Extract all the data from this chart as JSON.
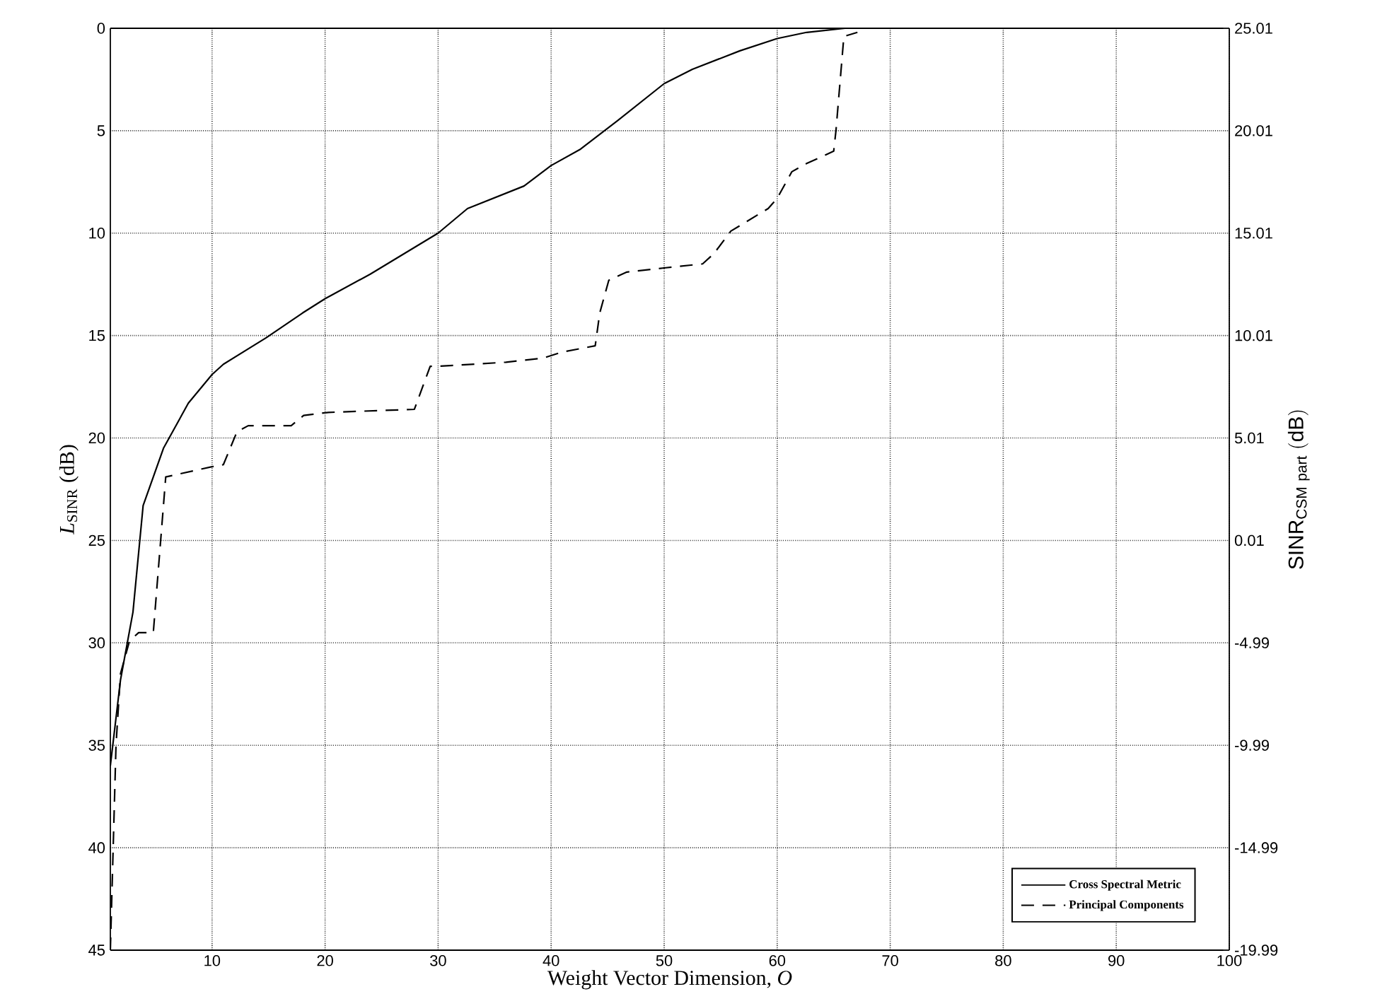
{
  "chart_data": {
    "type": "line",
    "xlabel": "Weight Vector Dimension, *O*",
    "ylabel": "*L*$_{SINR}$ (dB)",
    "y2label": "\\mathrm{SINR}_{\\mathrm{CSM\\ part}}\\ \\mathrm{(dB)}",
    "xlim": [
      1,
      100
    ],
    "xticks": [
      10,
      20,
      30,
      40,
      50,
      60,
      70,
      80,
      90,
      100
    ],
    "ylim": [
      45,
      0
    ],
    "yticks": [
      0,
      5,
      10,
      15,
      20,
      25,
      30,
      35,
      40,
      45
    ],
    "y2lim": [
      -19.99,
      25.01
    ],
    "y2ticks": [
      -19.99,
      -14.99,
      -9.99,
      -4.99,
      0.01,
      5.01,
      10.01,
      15.01,
      20.01,
      25.01
    ],
    "grid": true,
    "legend": "bottom right",
    "marker": "none",
    "series": [
      {
        "name": "Cross Spectral Metric",
        "color": "#000000",
        "line_style": "solid",
        "x": [
          1,
          1.9,
          3,
          3.9,
          5.7,
          7.9,
          10,
          11,
          14.8,
          18,
          20,
          24,
          30,
          32.6,
          37.6,
          40,
          42.6,
          45.9,
          50,
          52.5,
          56.7,
          60,
          62.6,
          66,
          100
        ],
        "values": [
          36,
          31.8,
          28.5,
          23.3,
          20.5,
          18.3,
          16.9,
          16.4,
          15.1,
          13.9,
          13.2,
          12,
          10,
          8.8,
          7.7,
          6.7,
          5.9,
          4.5,
          2.7,
          2.0,
          1.1,
          0.5,
          0.2,
          0,
          0
        ]
      },
      {
        "name": "Principal Components",
        "color": "#000000",
        "line_style": "dashed",
        "x": [
          1,
          1.2,
          1.5,
          1.9,
          2.7,
          3.5,
          4.8,
          5.9,
          10,
          11,
          12.2,
          13.2,
          17,
          18.1,
          20.3,
          27.9,
          29.3,
          30,
          36,
          39.3,
          41,
          43.9,
          44.3,
          45.1,
          46.7,
          50,
          53.4,
          54.4,
          55.9,
          59.2,
          60,
          61.3,
          62.6,
          65,
          65.2,
          65.9,
          67.1
        ],
        "values": [
          45,
          41,
          35,
          31.5,
          29.9,
          29.5,
          29.5,
          21.9,
          21.4,
          21.3,
          19.7,
          19.4,
          19.4,
          18.9,
          18.75,
          18.6,
          16.5,
          16.5,
          16.3,
          16.1,
          15.8,
          15.5,
          13.9,
          12.3,
          11.9,
          11.7,
          11.5,
          11,
          9.9,
          8.8,
          8.3,
          7,
          6.6,
          6,
          5,
          0.4,
          0.2
        ]
      }
    ]
  }
}
